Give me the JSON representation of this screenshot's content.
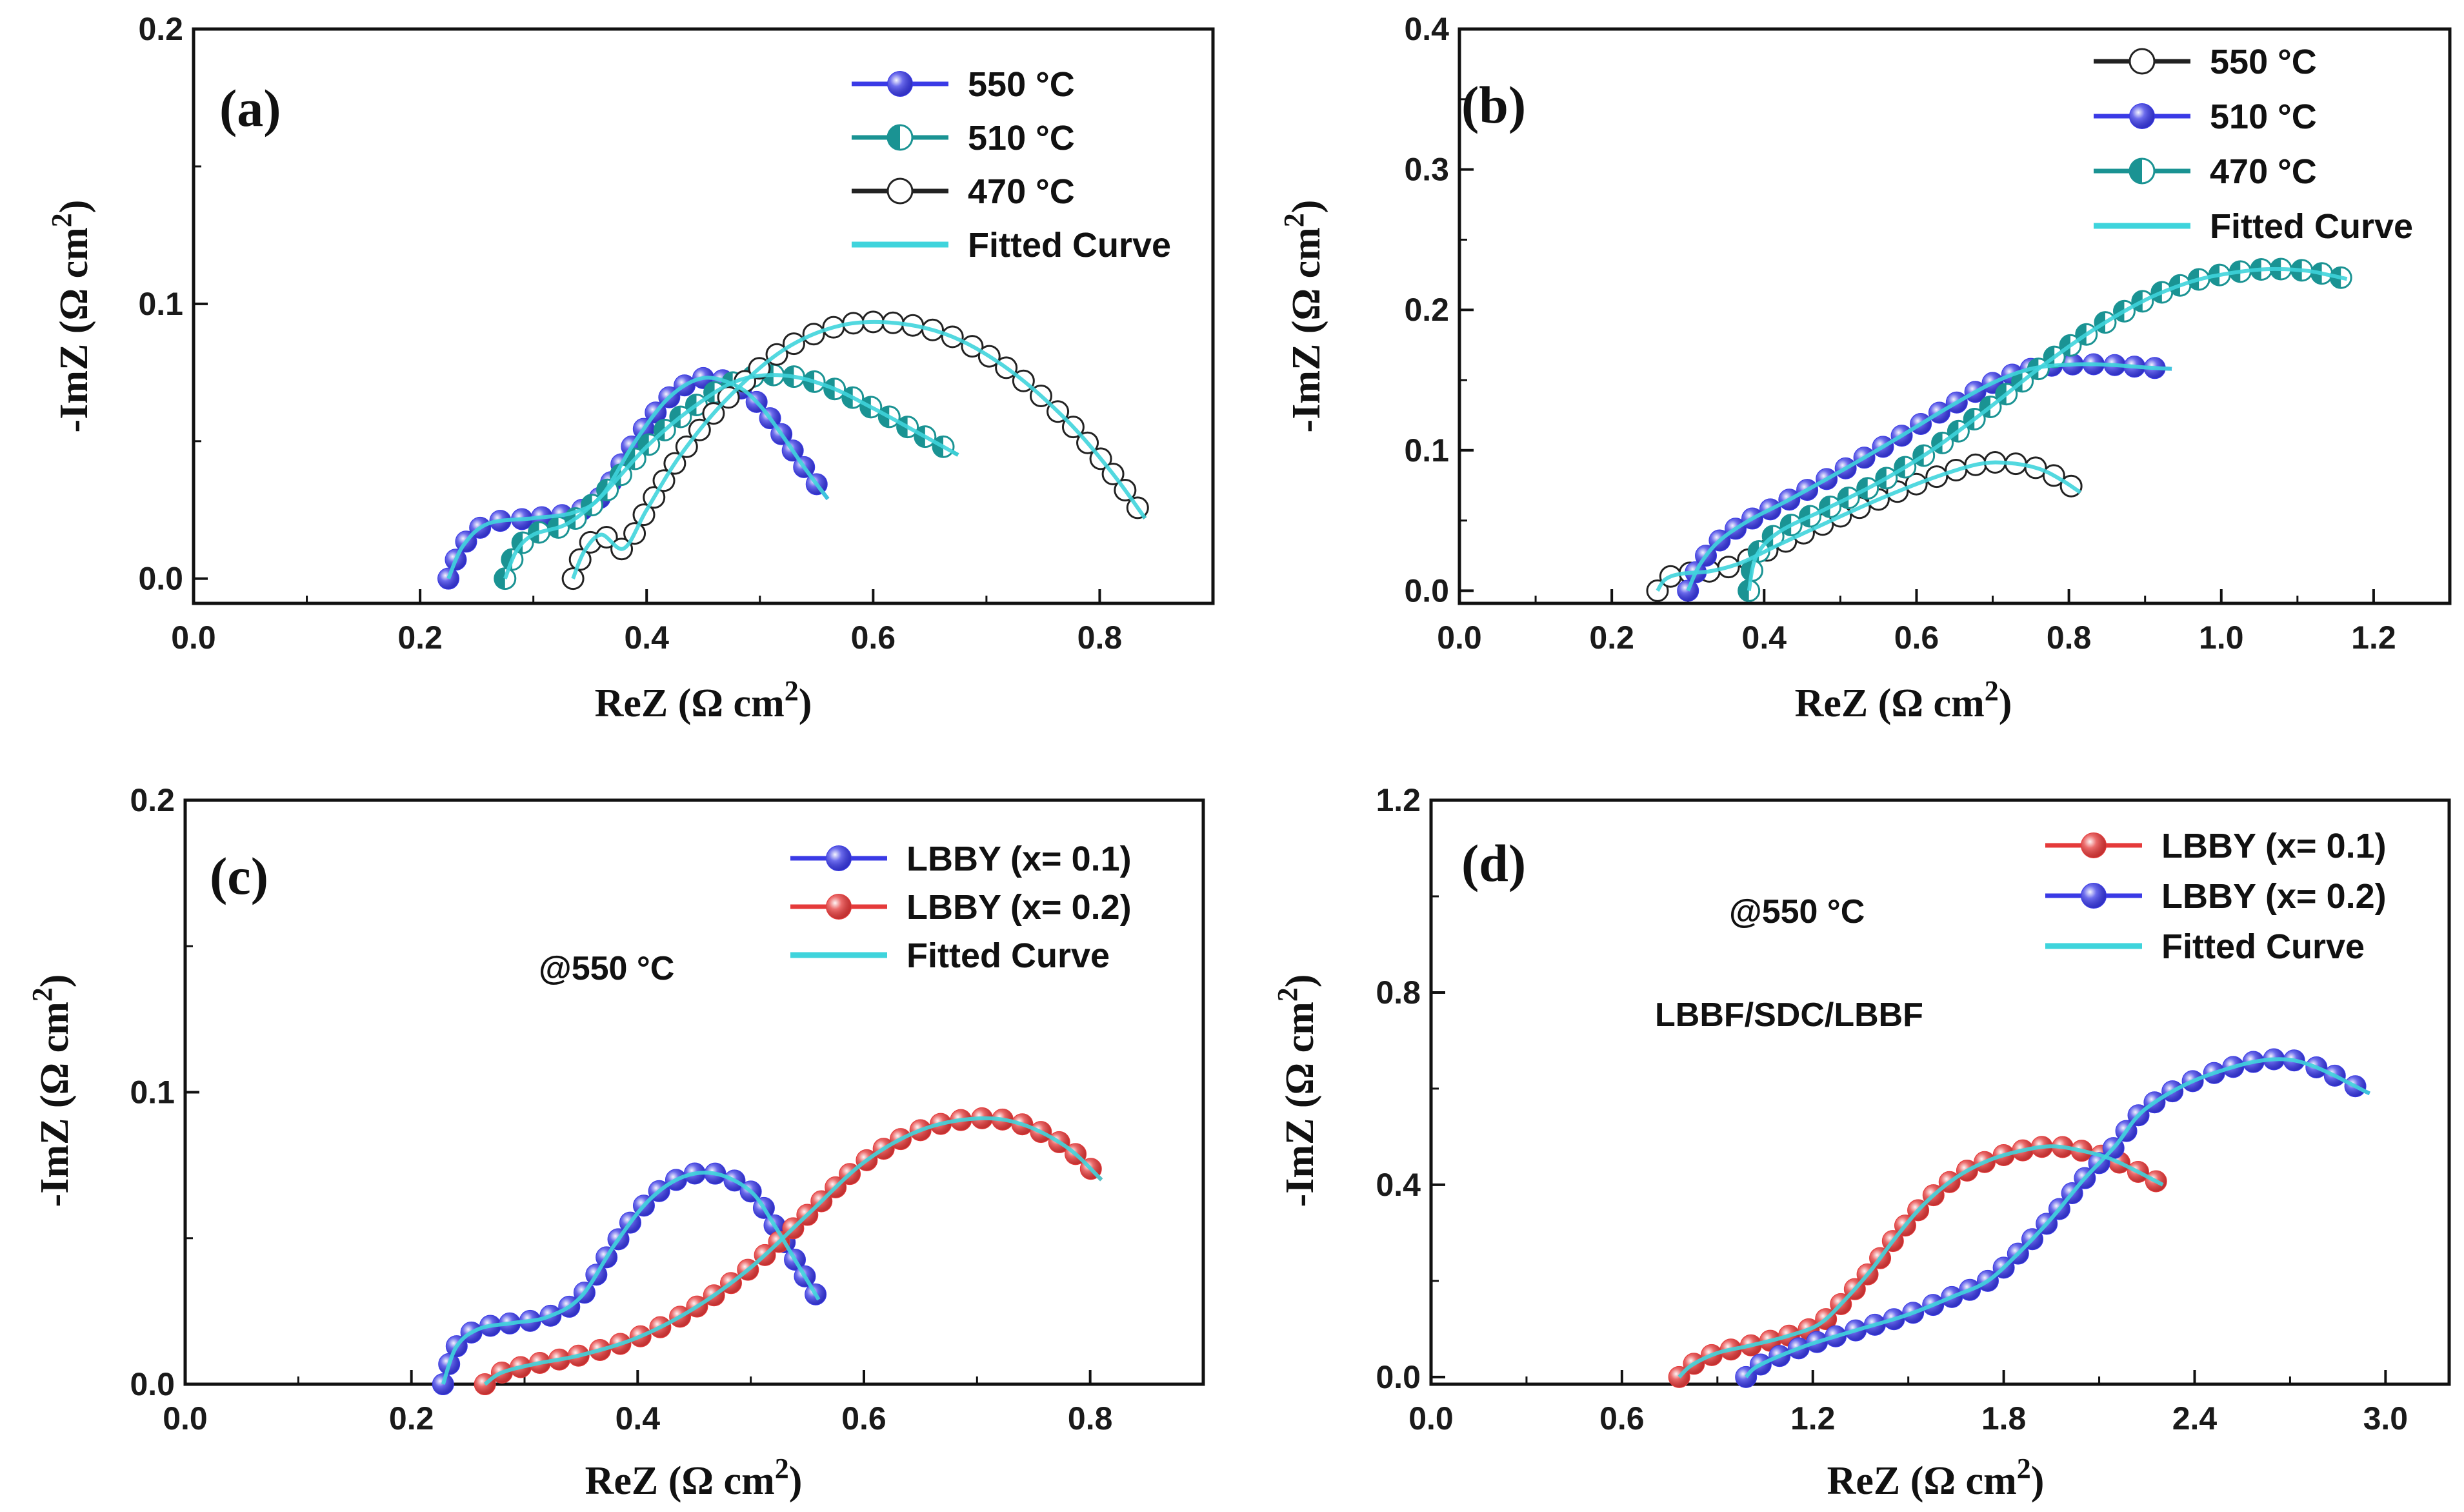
{
  "chart_data": [
    {
      "panel": "(a)",
      "type": "scatter",
      "xlabel": "ReZ (Ω  cm2)",
      "ylabel": "-ImZ (Ω cm2)",
      "xlim": [
        0,
        0.9
      ],
      "ylim": [
        -0.009,
        0.2
      ],
      "xticks": [
        0.0,
        0.2,
        0.4,
        0.6,
        0.8
      ],
      "xtick_labels": [
        "0.0",
        "0.2",
        "0.4",
        "0.6",
        "0.8"
      ],
      "yticks": [
        0.0,
        0.1,
        0.2
      ],
      "ytick_labels": [
        "0.0",
        "0.1",
        "0.2"
      ],
      "annotations": [],
      "legend_location": "top-right",
      "series": [
        {
          "name": "550 °C",
          "legend_label": "550 °C",
          "color": "#3a3ae6",
          "style": "filled",
          "x": [
            0.225,
            0.238,
            0.26,
            0.3,
            0.335,
            0.36,
            0.39,
            0.42,
            0.45,
            0.48,
            0.5,
            0.52,
            0.54,
            0.56
          ],
          "y": [
            0.0,
            0.012,
            0.02,
            0.022,
            0.024,
            0.03,
            0.05,
            0.066,
            0.073,
            0.07,
            0.063,
            0.052,
            0.04,
            0.029
          ]
        },
        {
          "name": "510 °C",
          "legend_label": "510 °C",
          "color": "#1a9393",
          "style": "half",
          "x": [
            0.275,
            0.285,
            0.3,
            0.33,
            0.36,
            0.4,
            0.44,
            0.48,
            0.52,
            0.56,
            0.6,
            0.64,
            0.675
          ],
          "y": [
            0.0,
            0.01,
            0.016,
            0.02,
            0.03,
            0.048,
            0.062,
            0.072,
            0.074,
            0.07,
            0.062,
            0.053,
            0.045
          ]
        },
        {
          "name": "470 °C",
          "legend_label": "470 °C",
          "color": "#111111",
          "style": "open",
          "x": [
            0.335,
            0.345,
            0.36,
            0.38,
            0.4,
            0.43,
            0.47,
            0.52,
            0.57,
            0.62,
            0.67,
            0.72,
            0.77,
            0.81,
            0.84
          ],
          "y": [
            0.0,
            0.01,
            0.016,
            0.011,
            0.025,
            0.045,
            0.065,
            0.083,
            0.092,
            0.093,
            0.088,
            0.076,
            0.058,
            0.039,
            0.022
          ]
        }
      ],
      "fit_legend_label": "Fitted Curve",
      "fit_color": "#3fd4dc"
    },
    {
      "panel": "(b)",
      "type": "scatter",
      "xlabel": "ReZ (Ω  cm2)",
      "ylabel": "-ImZ (Ω cm2)",
      "xlim": [
        0,
        1.3
      ],
      "ylim": [
        -0.009,
        0.4
      ],
      "xticks": [
        0.0,
        0.2,
        0.4,
        0.6,
        0.8,
        1.0,
        1.2
      ],
      "xtick_labels": [
        "0.0",
        "0.2",
        "0.4",
        "0.6",
        "0.8",
        "1.0",
        "1.2"
      ],
      "yticks": [
        0.0,
        0.1,
        0.2,
        0.3,
        0.4
      ],
      "ytick_labels": [
        "0.0",
        "0.1",
        "0.2",
        "0.3",
        "0.4"
      ],
      "annotations": [],
      "legend_location": "top-right",
      "series": [
        {
          "name": "550 °C",
          "legend_label": "550 °C",
          "color": "#111111",
          "style": "open",
          "x": [
            0.26,
            0.27,
            0.29,
            0.33,
            0.37,
            0.42,
            0.48,
            0.55,
            0.62,
            0.68,
            0.72,
            0.76,
            0.79,
            0.815
          ],
          "y": [
            0.0,
            0.008,
            0.012,
            0.014,
            0.02,
            0.033,
            0.048,
            0.065,
            0.08,
            0.09,
            0.091,
            0.087,
            0.079,
            0.07
          ]
        },
        {
          "name": "510 °C",
          "legend_label": "510 °C",
          "color": "#3a3ae6",
          "style": "filled",
          "x": [
            0.3,
            0.315,
            0.34,
            0.38,
            0.43,
            0.5,
            0.57,
            0.64,
            0.7,
            0.75,
            0.8,
            0.85,
            0.9,
            0.935
          ],
          "y": [
            0.0,
            0.018,
            0.035,
            0.05,
            0.064,
            0.085,
            0.107,
            0.13,
            0.148,
            0.158,
            0.161,
            0.161,
            0.159,
            0.158
          ]
        },
        {
          "name": "470 °C",
          "legend_label": "470 °C",
          "color": "#1a9393",
          "style": "half",
          "x": [
            0.38,
            0.39,
            0.42,
            0.48,
            0.55,
            0.62,
            0.69,
            0.76,
            0.83,
            0.9,
            0.96,
            1.01,
            1.06,
            1.11,
            1.14,
            1.165
          ],
          "y": [
            0.0,
            0.025,
            0.042,
            0.058,
            0.077,
            0.1,
            0.128,
            0.158,
            0.185,
            0.207,
            0.22,
            0.226,
            0.229,
            0.228,
            0.225,
            0.222
          ]
        }
      ],
      "fit_legend_label": "Fitted Curve",
      "fit_color": "#3fd4dc"
    },
    {
      "panel": "(c)",
      "type": "scatter",
      "xlabel": "ReZ (Ω  cm2)",
      "ylabel": "-ImZ (Ω cm2)",
      "xlim": [
        0,
        0.9
      ],
      "ylim": [
        0,
        0.2
      ],
      "xticks": [
        0.0,
        0.2,
        0.4,
        0.6,
        0.8
      ],
      "xtick_labels": [
        "0.0",
        "0.2",
        "0.4",
        "0.6",
        "0.8"
      ],
      "yticks": [
        0.0,
        0.1,
        0.2
      ],
      "ytick_labels": [
        "0.0",
        "0.1",
        "0.2"
      ],
      "annotations": [
        "@550 °C"
      ],
      "legend_location": "top-right",
      "series": [
        {
          "name": "LBBY (x= 0.1)",
          "legend_label": "LBBY (x= 0.1)",
          "color": "#3a3ae6",
          "style": "filled",
          "x": [
            0.228,
            0.24,
            0.26,
            0.29,
            0.32,
            0.35,
            0.38,
            0.41,
            0.44,
            0.47,
            0.5,
            0.52,
            0.54,
            0.56
          ],
          "y": [
            0.0,
            0.013,
            0.019,
            0.021,
            0.023,
            0.03,
            0.048,
            0.063,
            0.071,
            0.072,
            0.066,
            0.055,
            0.042,
            0.029
          ]
        },
        {
          "name": "LBBY (x= 0.2)",
          "legend_label": "LBBY (x= 0.2)",
          "color": "#e53a3a",
          "style": "filled",
          "x": [
            0.265,
            0.28,
            0.31,
            0.35,
            0.4,
            0.45,
            0.5,
            0.55,
            0.6,
            0.65,
            0.7,
            0.74,
            0.78,
            0.81
          ],
          "y": [
            0.0,
            0.004,
            0.007,
            0.01,
            0.016,
            0.026,
            0.04,
            0.058,
            0.076,
            0.087,
            0.091,
            0.089,
            0.081,
            0.07
          ]
        }
      ],
      "fit_legend_label": "Fitted Curve",
      "fit_color": "#3fd4dc"
    },
    {
      "panel": "(d)",
      "type": "scatter",
      "xlabel": "ReZ (Ω  cm2)",
      "ylabel": "-ImZ (Ω cm2)",
      "xlim": [
        0,
        3.2
      ],
      "ylim": [
        -0.015,
        1.2
      ],
      "xticks": [
        0.0,
        0.6,
        1.2,
        1.8,
        2.4,
        3.0
      ],
      "xtick_labels": [
        "0.0",
        "0.6",
        "1.2",
        "1.8",
        "2.4",
        "3.0"
      ],
      "yticks": [
        0.0,
        0.4,
        0.8,
        1.2
      ],
      "ytick_labels": [
        "0.0",
        "0.4",
        "0.8",
        "1.2"
      ],
      "annotations": [
        "@550 °C",
        "LBBF/SDC/LBBF"
      ],
      "legend_location": "top-right",
      "series": [
        {
          "name": "LBBY (x= 0.1)",
          "legend_label": "LBBY (x= 0.1)",
          "color": "#e53a3a",
          "style": "filled",
          "x": [
            0.78,
            0.82,
            0.9,
            1.0,
            1.12,
            1.22,
            1.3,
            1.38,
            1.46,
            1.55,
            1.65,
            1.75,
            1.85,
            1.95,
            2.05,
            2.15,
            2.3
          ],
          "y": [
            0.0,
            0.025,
            0.05,
            0.065,
            0.085,
            0.11,
            0.16,
            0.22,
            0.29,
            0.36,
            0.415,
            0.45,
            0.47,
            0.48,
            0.47,
            0.45,
            0.4
          ]
        },
        {
          "name": "LBBY (x= 0.2)",
          "legend_label": "LBBY (x= 0.2)",
          "color": "#3a3ae6",
          "style": "filled",
          "x": [
            0.99,
            1.02,
            1.1,
            1.2,
            1.35,
            1.5,
            1.65,
            1.75,
            1.85,
            1.95,
            2.05,
            2.15,
            2.25,
            2.45,
            2.7,
            2.95
          ],
          "y": [
            0.0,
            0.02,
            0.045,
            0.07,
            0.1,
            0.13,
            0.17,
            0.2,
            0.26,
            0.33,
            0.41,
            0.48,
            0.56,
            0.63,
            0.66,
            0.59
          ]
        }
      ],
      "fit_legend_label": "Fitted Curve",
      "fit_color": "#3fd4dc"
    }
  ]
}
